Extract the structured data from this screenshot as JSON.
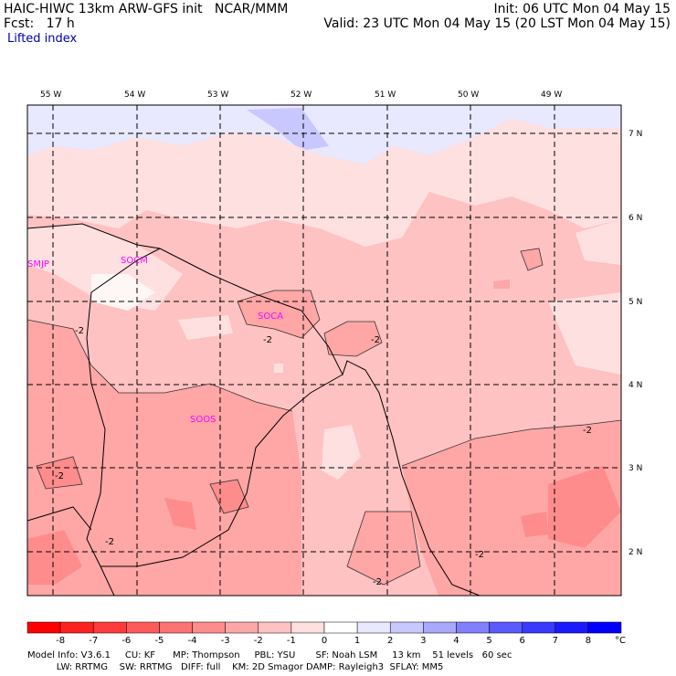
{
  "header": {
    "title_left": "HAIC-HIWC 13km ARW-GFS init   NCAR/MMM",
    "fcst": "Fcst:   17 h",
    "variable": "Lifted index",
    "init": "Init: 06 UTC Mon 04 May 15",
    "valid": "Valid: 23 UTC Mon 04 May 15 (20 LST Mon 04 May 15)"
  },
  "map": {
    "lon_labels": [
      "55 W",
      "54 W",
      "53 W",
      "52 W",
      "51 W",
      "50 W",
      "49 W"
    ],
    "lat_labels": [
      "7 N",
      "6 N",
      "5 N",
      "4 N",
      "3 N",
      "2 N"
    ],
    "stations": [
      "SMJP",
      "SOCM",
      "SOCA",
      "SOOS"
    ],
    "contour_label": "-2"
  },
  "colorbar": {
    "ticks": [
      "-8",
      "-7",
      "-6",
      "-5",
      "-4",
      "-3",
      "-2",
      "-1",
      "0",
      "1",
      "2",
      "3",
      "4",
      "5",
      "6",
      "7",
      "8"
    ],
    "unit": "°C",
    "colors": [
      "#ff0000",
      "#ff2020",
      "#ff3a3a",
      "#ff5a5a",
      "#ff7272",
      "#ff8c8c",
      "#ffa6a6",
      "#ffc2c2",
      "#ffe0e0",
      "#ffffff",
      "#e8e8ff",
      "#c8c8ff",
      "#a8a8ff",
      "#8080ff",
      "#5a5aff",
      "#3a3aff",
      "#1a1aff",
      "#0000ff"
    ]
  },
  "footer": {
    "line1": "Model Info: V3.6.1     CU: KF      MP: Thompson     PBL: YSU       SF: Noah LSM     13 km    51 levels   60 sec",
    "line2": "          LW: RRTMG    SW: RRTMG   DIFF: full    KM: 2D Smagor DAMP: Rayleigh3  SFLAY: MM5"
  }
}
